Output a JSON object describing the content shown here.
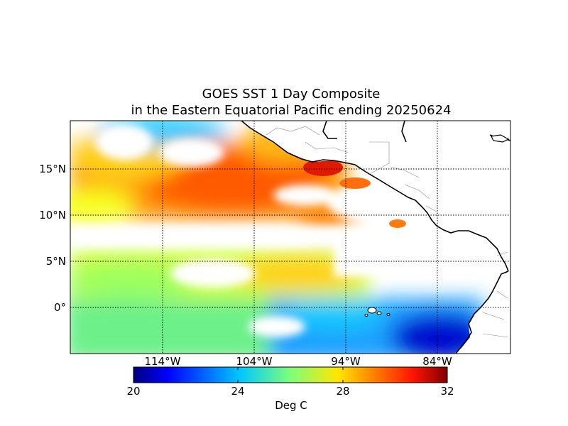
{
  "title_line1": "GOES SST 1 Day Composite",
  "title_line2": "in the Eastern Equatorial Pacific ending 20250624",
  "lat_labels": [
    "15°N",
    "10°N",
    "5°N",
    "0°"
  ],
  "lon_labels": [
    "114°W",
    "104°W",
    "94°W",
    "84°W"
  ],
  "colorbar": {
    "ticks": [
      "20",
      "24",
      "28",
      "32"
    ],
    "unit": "Deg C",
    "min": 20,
    "max": 32,
    "colormap": "jet"
  },
  "map": {
    "projection": "cylindrical",
    "lon_range": [
      -123,
      -75
    ],
    "lat_range": [
      -5,
      20
    ],
    "gridlines": "dotted",
    "land_color": "#ffffff",
    "coastline_color": "#000000"
  }
}
